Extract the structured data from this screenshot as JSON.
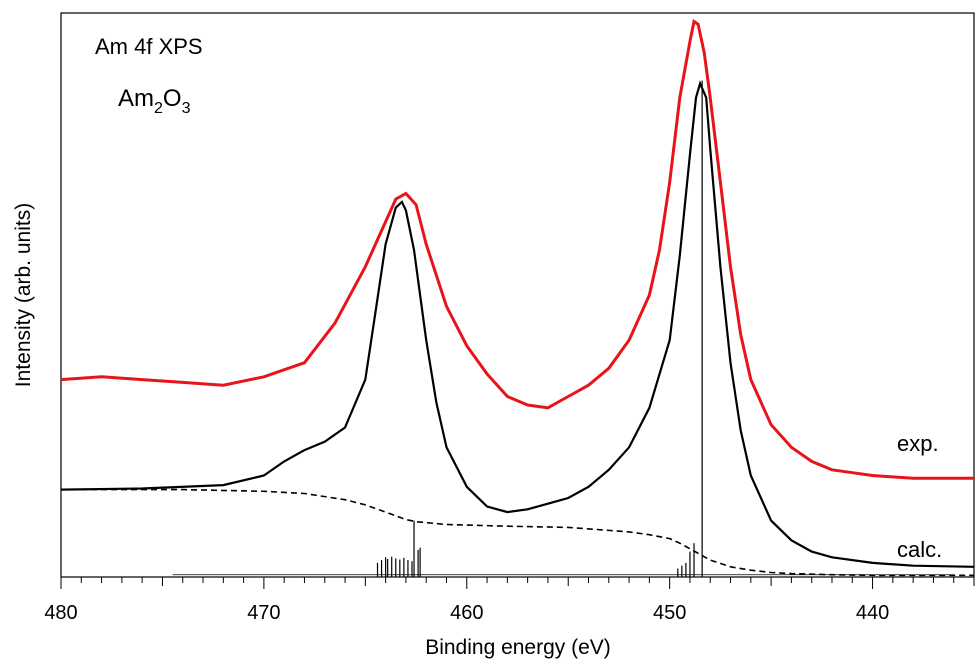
{
  "chart_data": {
    "type": "line",
    "title": "Am 4f XPS",
    "compound": {
      "base": "Am",
      "sub1": "2",
      "mid": "O",
      "sub2": "3"
    },
    "xlabel": "Binding energy (eV)",
    "ylabel": "Intensity (arb. units)",
    "xlim": [
      480,
      435
    ],
    "x_reversed": true,
    "ylim": [
      0,
      1
    ],
    "x_ticks": [
      480,
      470,
      460,
      450,
      440
    ],
    "x_tick_labels": [
      "480",
      "470",
      "460",
      "450",
      "440"
    ],
    "grid": false,
    "colors": {
      "experiment": "#e8141b",
      "calculation": "#000000",
      "background": "#000000",
      "sticks": "#000000"
    },
    "series": [
      {
        "name": "exp.",
        "style": "solid",
        "x": [
          480,
          478,
          476,
          474,
          472,
          470,
          468,
          466.5,
          465,
          464,
          463.5,
          463,
          462.5,
          462,
          461,
          460,
          459,
          458,
          457,
          456,
          455,
          454,
          453,
          452,
          451,
          450.5,
          450,
          449.5,
          449,
          448.8,
          448.6,
          448.3,
          448,
          447.5,
          447,
          446.5,
          446,
          445,
          444,
          443,
          442,
          441,
          440,
          438,
          436,
          435
        ],
        "y": [
          0.35,
          0.355,
          0.35,
          0.345,
          0.34,
          0.355,
          0.38,
          0.45,
          0.55,
          0.63,
          0.67,
          0.68,
          0.66,
          0.59,
          0.48,
          0.41,
          0.36,
          0.32,
          0.305,
          0.3,
          0.32,
          0.34,
          0.37,
          0.42,
          0.5,
          0.58,
          0.7,
          0.85,
          0.95,
          0.985,
          0.98,
          0.93,
          0.85,
          0.7,
          0.55,
          0.43,
          0.35,
          0.27,
          0.23,
          0.205,
          0.19,
          0.185,
          0.18,
          0.175,
          0.175,
          0.175
        ]
      },
      {
        "name": "calc.",
        "style": "solid",
        "x": [
          480,
          476,
          472,
          470,
          469,
          468,
          467,
          466,
          465,
          464.5,
          464,
          463.5,
          463.2,
          463,
          462.6,
          462,
          461.5,
          461,
          460,
          459,
          458,
          457,
          456,
          455,
          454,
          453,
          452,
          451,
          450,
          449.5,
          449,
          448.7,
          448.5,
          448.2,
          448,
          447.5,
          447,
          446.5,
          446,
          445,
          444,
          443,
          442,
          440,
          438,
          435
        ],
        "y": [
          0.155,
          0.157,
          0.163,
          0.18,
          0.205,
          0.225,
          0.24,
          0.265,
          0.35,
          0.47,
          0.59,
          0.655,
          0.665,
          0.65,
          0.58,
          0.42,
          0.31,
          0.23,
          0.16,
          0.125,
          0.115,
          0.12,
          0.13,
          0.14,
          0.16,
          0.19,
          0.23,
          0.3,
          0.42,
          0.57,
          0.75,
          0.85,
          0.875,
          0.85,
          0.76,
          0.55,
          0.38,
          0.26,
          0.18,
          0.1,
          0.065,
          0.045,
          0.035,
          0.025,
          0.02,
          0.018
        ]
      },
      {
        "name": "",
        "style": "dashed",
        "x": [
          480,
          474,
          470,
          468,
          466,
          465,
          464,
          463,
          462.5,
          461,
          458,
          455,
          452,
          451,
          450,
          449.5,
          449,
          448.5,
          448,
          447,
          446,
          445,
          444,
          442,
          440,
          435
        ],
        "y": [
          0.155,
          0.155,
          0.152,
          0.148,
          0.137,
          0.128,
          0.115,
          0.102,
          0.098,
          0.093,
          0.09,
          0.088,
          0.08,
          0.075,
          0.068,
          0.06,
          0.05,
          0.04,
          0.03,
          0.018,
          0.012,
          0.008,
          0.006,
          0.004,
          0.003,
          0.003
        ]
      }
    ],
    "sticks": {
      "x": [
        464.4,
        464.2,
        464.0,
        463.9,
        463.7,
        463.5,
        463.3,
        463.1,
        462.9,
        462.7,
        462.6,
        462.4,
        462.3,
        449.6,
        449.4,
        449.2,
        449.0,
        448.8,
        448.4
      ],
      "y": [
        0.025,
        0.03,
        0.035,
        0.032,
        0.036,
        0.033,
        0.031,
        0.034,
        0.03,
        0.028,
        0.1,
        0.048,
        0.052,
        0.015,
        0.02,
        0.025,
        0.045,
        0.06,
        0.88
      ]
    },
    "annotations": {
      "exp_label": "exp.",
      "calc_label": "calc."
    }
  }
}
